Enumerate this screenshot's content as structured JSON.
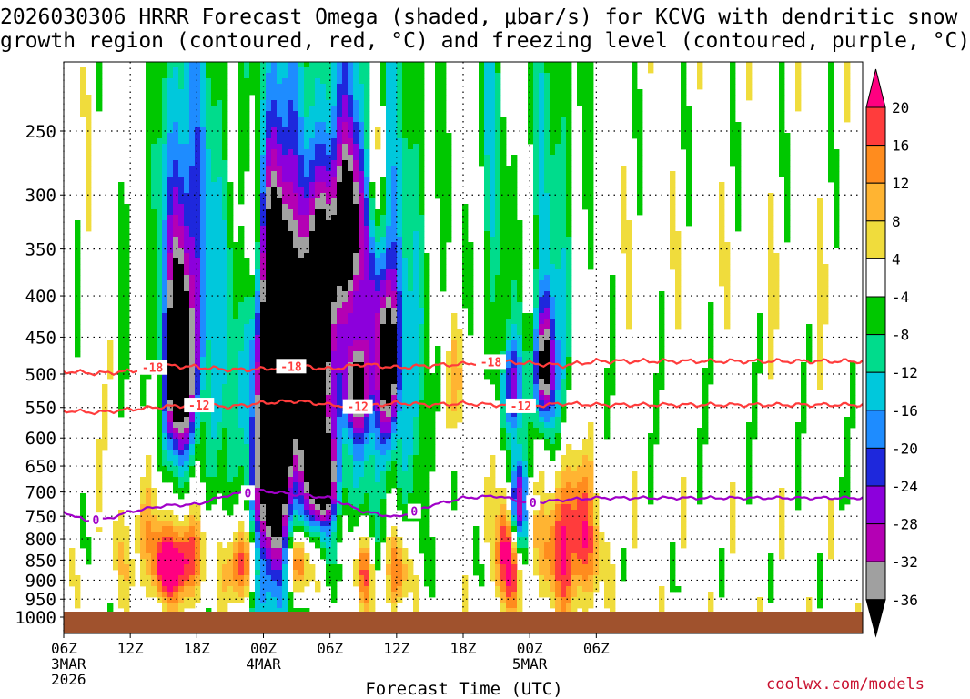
{
  "chart_data": {
    "type": "heatmap",
    "title_line1": "2026030306 HRRR Forecast Omega (shaded, μbar/s) for KCVG with dendritic snow",
    "title_line2": "growth region (contoured, red, °C) and freezing level (contoured, purple, °C)",
    "xlabel": "Forecast Time (UTC)",
    "ylabel": "",
    "x_range_hours": [
      0,
      72
    ],
    "y_range_hpa": [
      1000,
      200
    ],
    "y_ticks": [
      250,
      300,
      350,
      400,
      450,
      500,
      550,
      600,
      650,
      700,
      750,
      800,
      850,
      900,
      950,
      1000
    ],
    "x_ticks": [
      {
        "hour": 0,
        "label": "06Z",
        "sub1": "3MAR",
        "sub2": "2026"
      },
      {
        "hour": 6,
        "label": "12Z",
        "sub1": "",
        "sub2": ""
      },
      {
        "hour": 12,
        "label": "18Z",
        "sub1": "",
        "sub2": ""
      },
      {
        "hour": 18,
        "label": "00Z",
        "sub1": "4MAR",
        "sub2": ""
      },
      {
        "hour": 24,
        "label": "06Z",
        "sub1": "",
        "sub2": ""
      },
      {
        "hour": 30,
        "label": "12Z",
        "sub1": "",
        "sub2": ""
      },
      {
        "hour": 36,
        "label": "18Z",
        "sub1": "",
        "sub2": ""
      },
      {
        "hour": 42,
        "label": "00Z",
        "sub1": "5MAR",
        "sub2": ""
      },
      {
        "hour": 48,
        "label": "06Z",
        "sub1": "",
        "sub2": ""
      }
    ],
    "colorbar": {
      "levels": [
        20,
        16,
        12,
        8,
        4,
        -4,
        -8,
        -12,
        -16,
        -20,
        -24,
        -28,
        -32,
        -36
      ],
      "colors": [
        "#ff0080",
        "#ff3c3c",
        "#ff8c1e",
        "#ffb432",
        "#f0dc3c",
        "#ffffff",
        "#00c800",
        "#00dc8c",
        "#00c8dc",
        "#1e8cff",
        "#1e28dc",
        "#8c00dc",
        "#b400b4",
        "#a0a0a0",
        "#000000"
      ]
    },
    "omega_features": [
      {
        "hour": 18.8,
        "p": 650,
        "sx": 1.5,
        "sp": 260,
        "peak": -40
      },
      {
        "hour": 19.6,
        "p": 450,
        "sx": 1.2,
        "sp": 130,
        "peak": -38
      },
      {
        "hour": 22.5,
        "p": 560,
        "sx": 1.1,
        "sp": 120,
        "peak": -34
      },
      {
        "hour": 23.5,
        "p": 680,
        "sx": 0.9,
        "sp": 60,
        "peak": -30
      },
      {
        "hour": 10.4,
        "p": 500,
        "sx": 0.8,
        "sp": 80,
        "peak": -36
      },
      {
        "hour": 10.8,
        "p": 380,
        "sx": 1.5,
        "sp": 150,
        "peak": -20
      },
      {
        "hour": 26.3,
        "p": 520,
        "sx": 0.7,
        "sp": 50,
        "peak": -30
      },
      {
        "hour": 29.2,
        "p": 480,
        "sx": 0.8,
        "sp": 80,
        "peak": -34
      },
      {
        "hour": 25.5,
        "p": 330,
        "sx": 1.3,
        "sp": 60,
        "peak": -28
      },
      {
        "hour": 23.0,
        "p": 400,
        "sx": 1.2,
        "sp": 80,
        "peak": -26
      },
      {
        "hour": 43.4,
        "p": 490,
        "sx": 0.6,
        "sp": 60,
        "peak": -36
      },
      {
        "hour": 40.9,
        "p": 720,
        "sx": 0.6,
        "sp": 70,
        "peak": -36
      },
      {
        "hour": 40.5,
        "p": 520,
        "sx": 0.9,
        "sp": 50,
        "peak": -20
      },
      {
        "hour": 13.0,
        "p": 430,
        "sx": 3.5,
        "sp": 200,
        "peak": -10
      },
      {
        "hour": 25.0,
        "p": 380,
        "sx": 3.0,
        "sp": 280,
        "peak": -12
      },
      {
        "hour": 30.0,
        "p": 450,
        "sx": 3.0,
        "sp": 250,
        "peak": -10
      },
      {
        "hour": 38.5,
        "p": 280,
        "sx": 1.0,
        "sp": 150,
        "peak": -10
      },
      {
        "hour": 44.0,
        "p": 350,
        "sx": 2.0,
        "sp": 250,
        "peak": -10
      },
      {
        "hour": 16.0,
        "p": 860,
        "sx": 1.0,
        "sp": 70,
        "peak": 24
      },
      {
        "hour": 21.0,
        "p": 860,
        "sx": 0.9,
        "sp": 60,
        "peak": 24
      },
      {
        "hour": 11.0,
        "p": 850,
        "sx": 1.0,
        "sp": 70,
        "peak": 24
      },
      {
        "hour": 9.0,
        "p": 880,
        "sx": 0.6,
        "sp": 60,
        "peak": 18
      },
      {
        "hour": 40.0,
        "p": 820,
        "sx": 0.7,
        "sp": 110,
        "peak": 26
      },
      {
        "hour": 45.5,
        "p": 800,
        "sx": 1.8,
        "sp": 120,
        "peak": 24
      },
      {
        "hour": 27.0,
        "p": 880,
        "sx": 0.6,
        "sp": 70,
        "peak": 18
      },
      {
        "hour": 30.0,
        "p": 880,
        "sx": 0.8,
        "sp": 70,
        "peak": 18
      },
      {
        "hour": 17.1,
        "p": 330,
        "sx": 0.6,
        "sp": 80,
        "peak": 18
      },
      {
        "hour": 28.0,
        "p": 270,
        "sx": 0.6,
        "sp": 60,
        "peak": 16
      },
      {
        "hour": 35.5,
        "p": 520,
        "sx": 0.6,
        "sp": 70,
        "peak": 14
      },
      {
        "hour": 7.5,
        "p": 810,
        "sx": 2.0,
        "sp": 90,
        "peak": 10
      }
    ],
    "contours": [
      {
        "name": "dgz-minus-18",
        "label": "-18",
        "color": "#ff3c3c",
        "hours": [
          0,
          3,
          6,
          9,
          12,
          15,
          18,
          21,
          24,
          27,
          30,
          33,
          36,
          39,
          42,
          45,
          48
        ],
        "p": [
          496,
          499,
          496,
          488,
          490,
          494,
          493,
          488,
          493,
          486,
          491,
          488,
          486,
          482,
          485,
          488,
          482
        ],
        "label_hours": [
          8,
          20.5,
          38.5
        ]
      },
      {
        "name": "dgz-minus-12",
        "label": "-12",
        "color": "#ff3c3c",
        "hours": [
          0,
          3,
          6,
          9,
          12,
          15,
          18,
          21,
          24,
          27,
          30,
          33,
          36,
          39,
          42,
          45,
          48
        ],
        "p": [
          555,
          558,
          553,
          549,
          546,
          549,
          543,
          540,
          546,
          549,
          543,
          546,
          544,
          546,
          548,
          544,
          546
        ],
        "label_hours": [
          12.2,
          26.5,
          41.2
        ]
      },
      {
        "name": "freezing-level",
        "label": "0",
        "color": "#a000c8",
        "hours": [
          0,
          2,
          4,
          6,
          9,
          12,
          15,
          18,
          21,
          24,
          27,
          30,
          33,
          36,
          39,
          42,
          45,
          48
        ],
        "p": [
          740,
          760,
          755,
          740,
          728,
          725,
          705,
          698,
          705,
          712,
          740,
          752,
          728,
          712,
          708,
          722,
          716,
          712
        ],
        "label_hours": [
          2.9,
          16.6,
          31.6,
          42.3
        ]
      }
    ]
  },
  "watermark": "coolwx.com/models"
}
